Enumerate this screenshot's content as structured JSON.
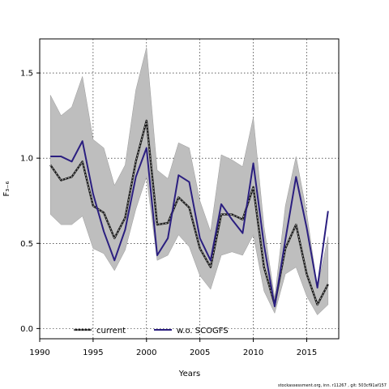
{
  "chart_data": {
    "type": "line",
    "title": "",
    "xlabel": "Years",
    "ylabel": "F₃₋₆",
    "xlim": [
      1990,
      2018
    ],
    "ylim": [
      -0.06,
      1.7
    ],
    "xticks": [
      "1990",
      "1995",
      "2000",
      "2005",
      "2010",
      "2015"
    ],
    "yticks": [
      "0.0",
      "0.5",
      "1.0",
      "1.5"
    ],
    "grid": true,
    "legend_position": "bottom-left",
    "colors": {
      "band": "#bebebe",
      "band_edge": "#9a9a9a",
      "current": "#1a1a1a",
      "current_dash": "#aaaaaa",
      "wo": "#2b1f80"
    },
    "x": [
      1991,
      1992,
      1993,
      1994,
      1995,
      1996,
      1997,
      1998,
      1999,
      2000,
      2001,
      2002,
      2003,
      2004,
      2005,
      2006,
      2007,
      2008,
      2009,
      2010,
      2011,
      2012,
      2013,
      2014,
      2015,
      2016,
      2017
    ],
    "band": {
      "lower": [
        0.67,
        0.61,
        0.61,
        0.66,
        0.47,
        0.44,
        0.34,
        0.46,
        0.7,
        0.89,
        0.4,
        0.43,
        0.55,
        0.48,
        0.31,
        0.23,
        0.43,
        0.45,
        0.43,
        0.55,
        0.22,
        0.09,
        0.32,
        0.36,
        0.19,
        0.08,
        0.14
      ],
      "upper": [
        1.37,
        1.25,
        1.3,
        1.48,
        1.11,
        1.06,
        0.84,
        0.96,
        1.4,
        1.65,
        0.93,
        0.88,
        1.09,
        1.06,
        0.75,
        0.57,
        1.02,
        0.99,
        0.95,
        1.24,
        0.6,
        0.18,
        0.72,
        1.01,
        0.68,
        0.24,
        0.54
      ]
    },
    "series": [
      {
        "name": "current",
        "values": [
          0.96,
          0.87,
          0.89,
          0.98,
          0.72,
          0.68,
          0.53,
          0.65,
          0.98,
          1.22,
          0.61,
          0.62,
          0.77,
          0.71,
          0.47,
          0.36,
          0.67,
          0.67,
          0.64,
          0.83,
          0.36,
          0.14,
          0.47,
          0.61,
          0.32,
          0.14,
          0.26
        ]
      },
      {
        "name": "w.o. SCOGFS",
        "values": [
          1.01,
          1.01,
          0.98,
          1.1,
          0.79,
          0.57,
          0.4,
          0.58,
          0.89,
          1.06,
          0.43,
          0.53,
          0.9,
          0.86,
          0.53,
          0.4,
          0.73,
          0.64,
          0.56,
          0.97,
          0.49,
          0.13,
          0.52,
          0.89,
          0.59,
          0.24,
          0.69
        ]
      }
    ]
  },
  "footer": "stockassessment.org, inn. r11267 , git: 503cf91af157"
}
